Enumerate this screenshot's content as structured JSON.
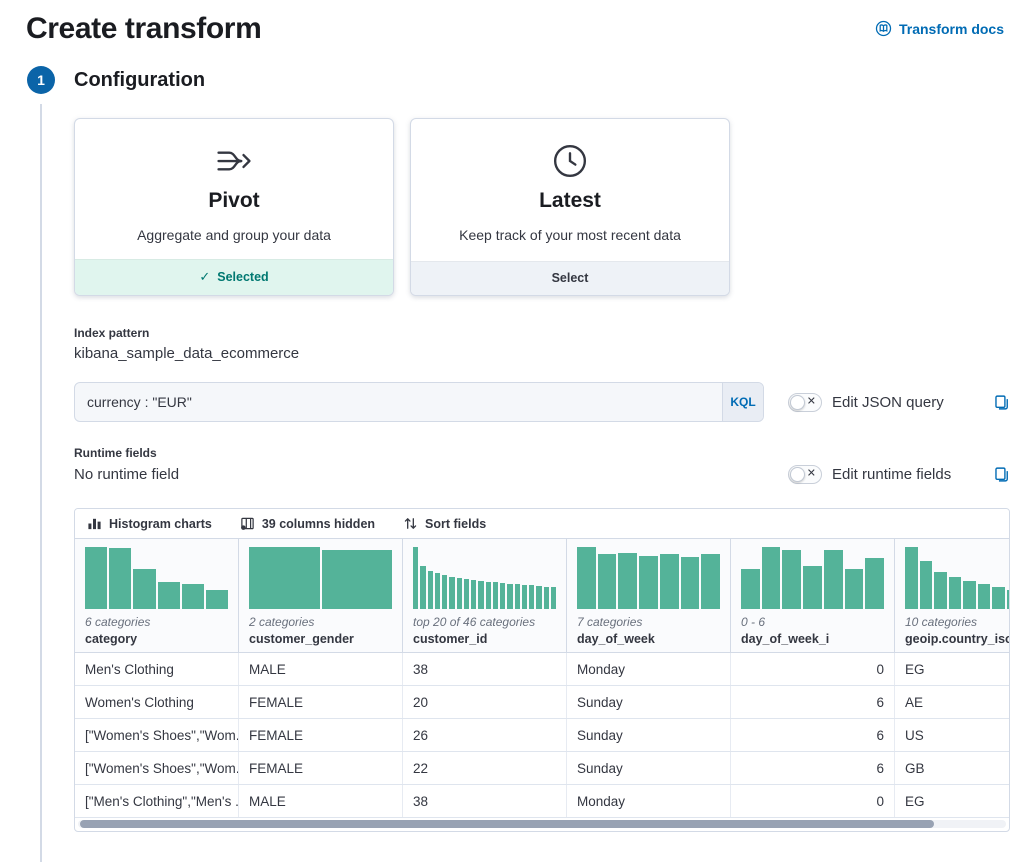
{
  "page": {
    "title": "Create transform"
  },
  "header": {
    "docs_link": "Transform docs"
  },
  "step": {
    "number": "1",
    "title": "Configuration"
  },
  "cards": {
    "pivot": {
      "title": "Pivot",
      "description": "Aggregate and group your data",
      "footer_label": "Selected"
    },
    "latest": {
      "title": "Latest",
      "description": "Keep track of your most recent data",
      "footer_label": "Select"
    }
  },
  "index_pattern": {
    "label": "Index pattern",
    "value": "kibana_sample_data_ecommerce"
  },
  "query": {
    "value": "currency : \"EUR\"",
    "language": "KQL",
    "toggle_label": "Edit JSON query"
  },
  "runtime_fields": {
    "label": "Runtime fields",
    "value": "No runtime field",
    "toggle_label": "Edit runtime fields"
  },
  "colors": {
    "accent_blue": "#006BB4",
    "histogram_green": "#54B399",
    "selected_green": "#007871",
    "step_blue": "#0b64a8"
  },
  "grid": {
    "toolbar": {
      "histogram": "Histogram charts",
      "columns_hidden": "39 columns hidden",
      "sort": "Sort fields"
    },
    "columns": [
      {
        "name": "category",
        "legend": "6 categories",
        "align": "left",
        "bars": [
          100,
          98,
          65,
          43,
          41,
          31
        ]
      },
      {
        "name": "customer_gender",
        "legend": "2 categories",
        "align": "left",
        "bars": [
          100,
          95
        ]
      },
      {
        "name": "customer_id",
        "legend": "top 20 of 46 categories",
        "align": "left",
        "bars": [
          100,
          70,
          62,
          58,
          55,
          52,
          50,
          48,
          46,
          45,
          44,
          43,
          42,
          41,
          40,
          39,
          38,
          37,
          36,
          35
        ]
      },
      {
        "name": "day_of_week",
        "legend": "7 categories",
        "align": "left",
        "bars": [
          100,
          88,
          91,
          86,
          88,
          84,
          88
        ]
      },
      {
        "name": "day_of_week_i",
        "legend": "0 - 6",
        "align": "right",
        "bars": [
          64,
          100,
          95,
          69,
          95,
          65,
          82
        ]
      },
      {
        "name": "geoip.country_iso_code",
        "legend": "10 categories",
        "align": "left",
        "bars": [
          100,
          78,
          60,
          52,
          45,
          40,
          35,
          31,
          27,
          24
        ]
      }
    ],
    "rows": [
      [
        "Men's Clothing",
        "MALE",
        "38",
        "Monday",
        "0",
        "EG"
      ],
      [
        "Women's Clothing",
        "FEMALE",
        "20",
        "Sunday",
        "6",
        "AE"
      ],
      [
        "[\"Women's Shoes\",\"Wom...",
        "FEMALE",
        "26",
        "Sunday",
        "6",
        "US"
      ],
      [
        "[\"Women's Shoes\",\"Wom...",
        "FEMALE",
        "22",
        "Sunday",
        "6",
        "GB"
      ],
      [
        "[\"Men's Clothing\",\"Men's ...",
        "MALE",
        "38",
        "Monday",
        "0",
        "EG"
      ]
    ]
  }
}
